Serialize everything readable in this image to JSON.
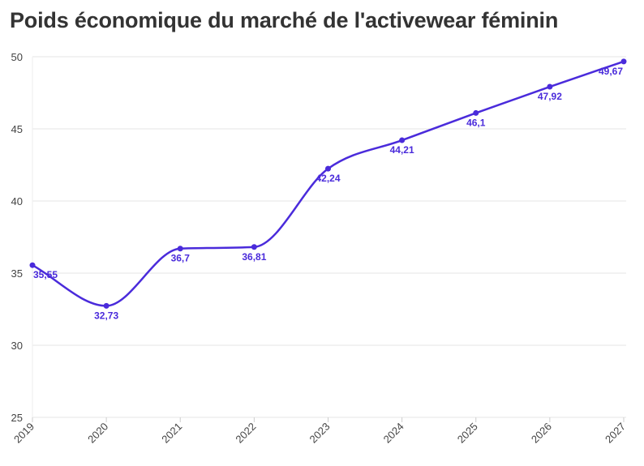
{
  "chart_data": {
    "type": "line",
    "title": "Poids économique du marché de l'activewear féminin",
    "xlabel": "",
    "ylabel": "",
    "x": [
      "2019",
      "2020",
      "2021",
      "2022",
      "2023",
      "2024",
      "2025",
      "2026",
      "2027"
    ],
    "series": [
      {
        "values": [
          35.55,
          32.73,
          36.7,
          36.81,
          42.24,
          44.21,
          46.1,
          47.92,
          49.67
        ],
        "labels": [
          "35,55",
          "32,73",
          "36,7",
          "36,81",
          "42,24",
          "44,21",
          "46,1",
          "47,92",
          "49,67"
        ],
        "color": "#4a2bdb"
      }
    ],
    "ylim": [
      25,
      50
    ],
    "yticks": [
      "25",
      "30",
      "35",
      "40",
      "45",
      "50"
    ],
    "grid": true,
    "legend": "none",
    "smooth": true
  }
}
